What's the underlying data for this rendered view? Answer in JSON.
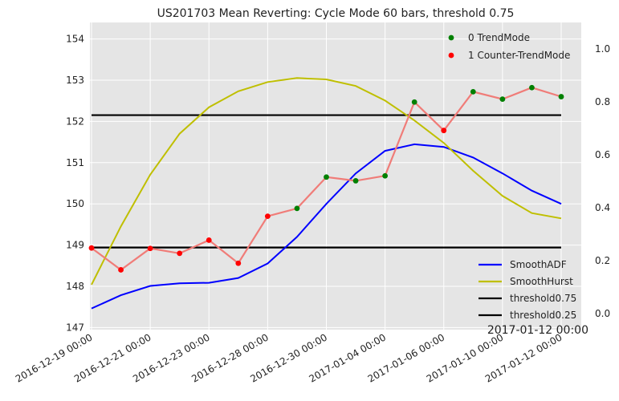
{
  "chart_data": {
    "type": "line",
    "title": "US201703 Mean Reverting: Cycle Mode 60 bars, threshold 0.75",
    "x": [
      "2016-12-19",
      "2016-12-20",
      "2016-12-21",
      "2016-12-22",
      "2016-12-23",
      "2016-12-27",
      "2016-12-28",
      "2016-12-29",
      "2016-12-30",
      "2017-01-03",
      "2017-01-04",
      "2017-01-05",
      "2017-01-06",
      "2017-01-09",
      "2017-01-10",
      "2017-01-11",
      "2017-01-12"
    ],
    "x_tick_labels": [
      "2016-12-19 00:00",
      "2016-12-21 00:00",
      "2016-12-23 00:00",
      "2016-12-28 00:00",
      "2016-12-30 00:00",
      "2017-01-04 00:00",
      "2017-01-06 00:00",
      "2017-01-10 00:00",
      "2017-01-12 00:00"
    ],
    "x_tick_index": [
      0,
      2,
      4,
      6,
      8,
      10,
      12,
      14,
      16
    ],
    "left_axis": {
      "ylim": [
        146.95,
        154.4
      ],
      "ticks": [
        "147",
        "148",
        "149",
        "150",
        "151",
        "152",
        "153",
        "154"
      ]
    },
    "right_axis": {
      "ylim": [
        -0.06,
        1.1
      ],
      "ticks": [
        "0.0",
        "0.2",
        "0.4",
        "0.6",
        "0.8",
        "1.0"
      ]
    },
    "price": {
      "color": "#f07c78",
      "values": [
        148.93,
        148.4,
        148.92,
        148.8,
        149.12,
        148.56,
        149.7,
        149.89,
        150.65,
        150.56,
        150.68,
        152.47,
        151.78,
        152.72,
        152.54,
        152.82,
        152.6
      ],
      "mode": [
        1,
        1,
        1,
        1,
        1,
        1,
        1,
        0,
        0,
        0,
        0,
        0,
        1,
        0,
        0,
        0,
        0
      ]
    },
    "series": [
      {
        "name": "SmoothADF",
        "axis": "right",
        "color": "#0000ff",
        "values": [
          0.02,
          0.07,
          0.105,
          0.115,
          0.117,
          0.135,
          0.19,
          0.29,
          0.415,
          0.53,
          0.615,
          0.64,
          0.63,
          0.59,
          0.53,
          0.465,
          0.415
        ]
      },
      {
        "name": "SmoothHurst",
        "axis": "right",
        "color": "#bfbf00",
        "values": [
          0.11,
          0.33,
          0.525,
          0.68,
          0.78,
          0.84,
          0.875,
          0.89,
          0.885,
          0.86,
          0.805,
          0.73,
          0.645,
          0.54,
          0.445,
          0.38,
          0.36
        ]
      }
    ],
    "thresholds": [
      {
        "name": "threshold0.75",
        "value": 0.75,
        "color": "#000000"
      },
      {
        "name": "threshold0.25",
        "value": 0.25,
        "color": "#000000"
      }
    ],
    "scatter_legend": [
      {
        "name": "0 TrendMode",
        "color": "#008000"
      },
      {
        "name": "1 Counter-TrendMode",
        "color": "#ff0000"
      }
    ],
    "grid": true,
    "background": "#e5e5e5",
    "legend_upper": "top-right",
    "legend_lower": "bottom-right",
    "cursor_readout": "2017-01-12 00:00"
  }
}
